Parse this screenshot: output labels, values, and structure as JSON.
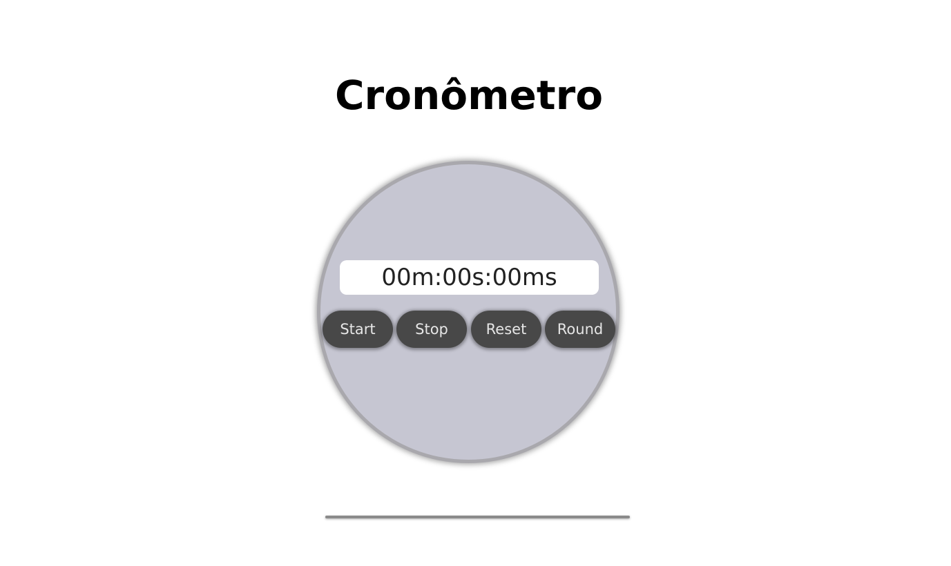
{
  "page": {
    "title": "Cronômetro"
  },
  "stopwatch": {
    "display": "00m:00s:00ms",
    "buttons": {
      "start": "Start",
      "stop": "Stop",
      "reset": "Reset",
      "round": "Round"
    }
  },
  "colors": {
    "dial_fill": "#c6c6d2",
    "dial_border": "#a9a8ad",
    "button_bg": "#484848",
    "button_text": "#e6e6e6",
    "display_bg": "#ffffff",
    "divider": "#8a8a8a"
  },
  "rounds": []
}
